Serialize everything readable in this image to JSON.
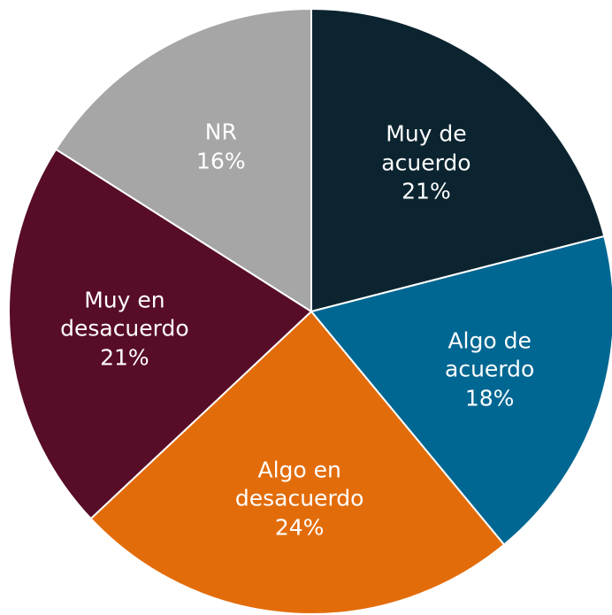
{
  "chart_data": {
    "type": "pie",
    "categories": [
      "Muy de acuerdo",
      "Algo de acuerdo",
      "Algo en desacuerdo",
      "Muy en desacuerdo",
      "NR"
    ],
    "values": [
      21,
      18,
      24,
      21,
      16
    ],
    "value_labels": [
      "21%",
      "18%",
      "24%",
      "21%",
      "16%"
    ],
    "colors": [
      "#0b2430",
      "#006792",
      "#e36c0a",
      "#570c28",
      "#a6a6a6"
    ]
  }
}
